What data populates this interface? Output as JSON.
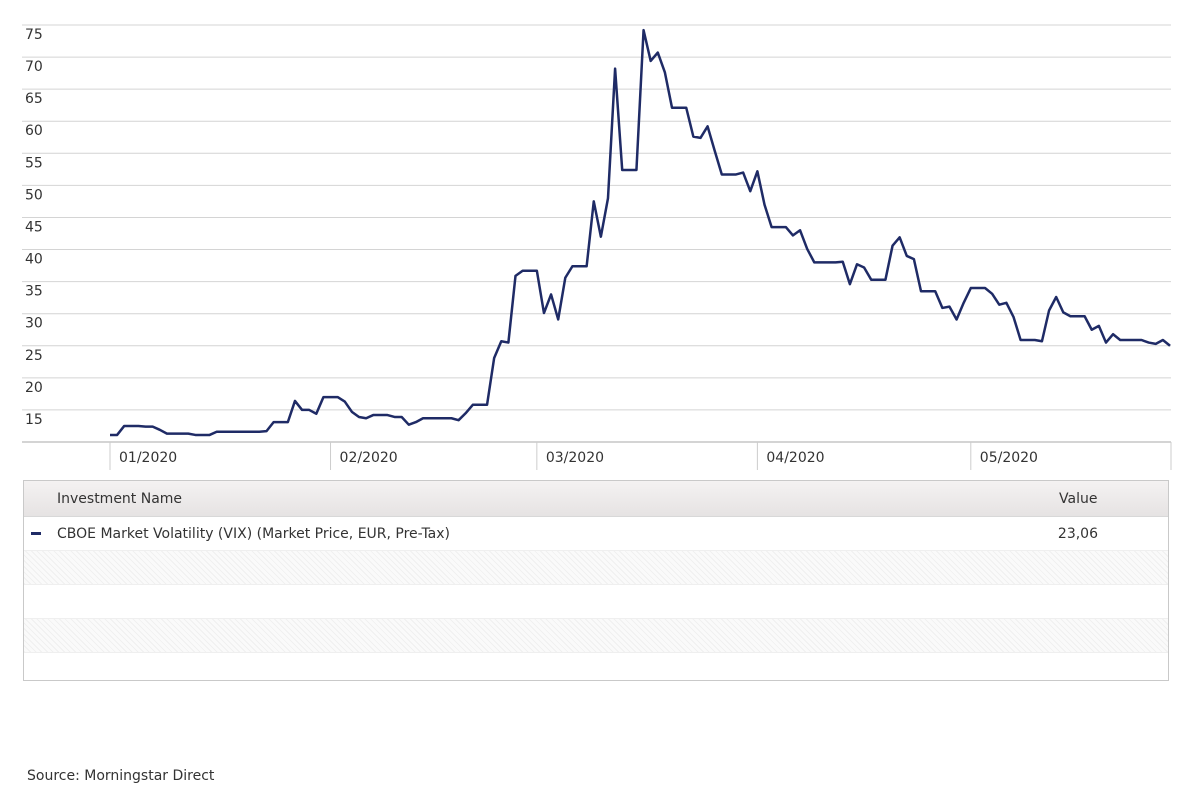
{
  "chart_data": {
    "type": "line",
    "categories": [
      "01/2020",
      null,
      null,
      null,
      null,
      null,
      null,
      null,
      null,
      null,
      null,
      null,
      null,
      null,
      null,
      null,
      null,
      null,
      null,
      null,
      null,
      null,
      null,
      null,
      null,
      null,
      null,
      null,
      null,
      null,
      null,
      "02/2020",
      null,
      null,
      null,
      null,
      null,
      null,
      null,
      null,
      null,
      null,
      null,
      null,
      null,
      null,
      null,
      null,
      null,
      null,
      null,
      null,
      null,
      null,
      null,
      null,
      null,
      null,
      null,
      null,
      "03/2020",
      null,
      null,
      null,
      null,
      null,
      null,
      null,
      null,
      null,
      null,
      null,
      null,
      null,
      null,
      null,
      null,
      null,
      null,
      null,
      null,
      null,
      null,
      null,
      null,
      null,
      null,
      null,
      null,
      null,
      null,
      "04/2020",
      null,
      null,
      null,
      null,
      null,
      null,
      null,
      null,
      null,
      null,
      null,
      null,
      null,
      null,
      null,
      null,
      null,
      null,
      null,
      null,
      null,
      null,
      null,
      null,
      null,
      null,
      null,
      null,
      null,
      "05/2020",
      null,
      null,
      null,
      null,
      null,
      null,
      null,
      null,
      null,
      null,
      null,
      null,
      null,
      null,
      null,
      null,
      null,
      null,
      null,
      null,
      null,
      null,
      null,
      null,
      null,
      null,
      null,
      null
    ],
    "series": [
      {
        "name": "CBOE Market Volatility (VIX) (Market Price, EUR, Pre-Tax)",
        "color": "#1f2b66",
        "values": [
          11.1,
          11.1,
          12.5,
          12.5,
          12.5,
          12.4,
          12.4,
          11.9,
          11.3,
          11.3,
          11.3,
          11.3,
          11.1,
          11.1,
          11.1,
          11.6,
          11.6,
          11.6,
          11.6,
          11.6,
          11.6,
          11.6,
          11.7,
          13.1,
          13.1,
          13.1,
          16.4,
          15.0,
          15.0,
          14.4,
          17.0,
          17.0,
          17.0,
          16.3,
          14.7,
          13.9,
          13.7,
          14.2,
          14.2,
          14.2,
          13.9,
          13.9,
          12.7,
          13.1,
          13.7,
          13.7,
          13.7,
          13.7,
          13.7,
          13.4,
          14.5,
          15.8,
          15.8,
          15.8,
          23.1,
          25.7,
          25.5,
          35.9,
          36.7,
          36.7,
          36.7,
          30.1,
          33.0,
          29.1,
          35.6,
          37.4,
          37.4,
          37.4,
          47.5,
          42.0,
          48.0,
          68.2,
          52.4,
          52.4,
          52.4,
          74.2,
          69.4,
          70.7,
          67.6,
          62.1,
          62.1,
          62.1,
          57.6,
          57.4,
          59.2,
          55.4,
          51.7,
          51.7,
          51.7,
          52.0,
          49.1,
          52.2,
          47.0,
          43.5,
          43.5,
          43.5,
          42.2,
          43.0,
          40.1,
          38.0,
          38.0,
          38.0,
          38.0,
          38.1,
          34.6,
          37.7,
          37.2,
          35.3,
          35.3,
          35.3,
          40.6,
          41.9,
          39.0,
          38.5,
          33.5,
          33.5,
          33.5,
          30.9,
          31.1,
          29.1,
          31.7,
          34.0,
          34.0,
          34.0,
          33.1,
          31.4,
          31.7,
          29.5,
          25.9,
          25.9,
          25.9,
          25.7,
          30.5,
          32.6,
          30.2,
          29.6,
          29.6,
          29.6,
          27.5,
          28.1,
          25.5,
          26.8,
          25.9,
          25.9,
          25.9,
          25.9,
          25.5,
          25.3,
          25.9,
          25.0
        ]
      }
    ],
    "ylim": [
      10,
      75
    ],
    "yticks": [
      15,
      20,
      25,
      30,
      35,
      40,
      45,
      50,
      55,
      60,
      65,
      70,
      75
    ],
    "grid": true
  },
  "legend_table": {
    "columns": [
      "Investment Name",
      "Value"
    ],
    "values": [
      "23,06"
    ]
  },
  "source": "Source: Morningstar Direct"
}
